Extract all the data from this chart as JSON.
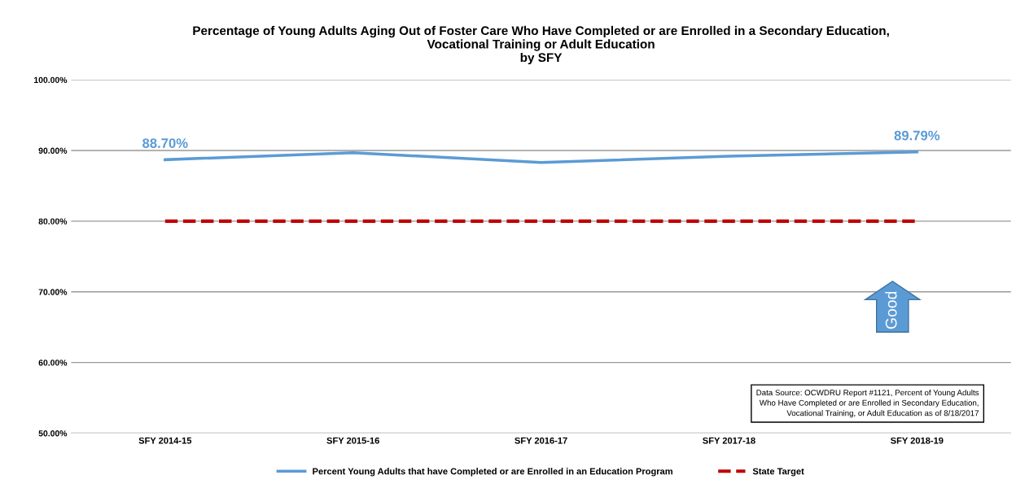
{
  "chart_data": {
    "type": "line",
    "title": "Percentage of Young Adults Aging Out of Foster Care Who Have Completed or are Enrolled in a Secondary Education,\nVocational Training or Adult Education\nby SFY",
    "categories": [
      "SFY 2014-15",
      "SFY 2015-16",
      "SFY 2016-17",
      "SFY 2017-18",
      "SFY 2018-19"
    ],
    "series": [
      {
        "name": "Percent Young Adults that have Completed or are Enrolled in an Education Program",
        "color": "#5b9bd5",
        "values": [
          88.7,
          89.7,
          88.3,
          89.2,
          89.79
        ],
        "value_labels": [
          "88.70%",
          null,
          null,
          null,
          "89.79%"
        ],
        "line_style": "solid"
      },
      {
        "name": "State Target",
        "color": "#c00000",
        "values": [
          80,
          80,
          80,
          80,
          80
        ],
        "line_style": "dashed"
      }
    ],
    "ylim": [
      50,
      100
    ],
    "yticks": [
      {
        "value": 50,
        "label": "50.00%"
      },
      {
        "value": 60,
        "label": "60.00%"
      },
      {
        "value": 70,
        "label": "70.00%"
      },
      {
        "value": 80,
        "label": "80.00%"
      },
      {
        "value": 90,
        "label": "90.00%"
      },
      {
        "value": 100,
        "label": "100.00%"
      }
    ],
    "grid": "y",
    "legend": "bottom",
    "marker": "none",
    "annotations": [
      "Good",
      "Data Source: OCWDRU Report #1121, Percent of Young Adults\nWho Have Completed or are Enrolled in Secondary Education,\nVocational Training, or Adult Education as of 8/18/2017"
    ]
  }
}
